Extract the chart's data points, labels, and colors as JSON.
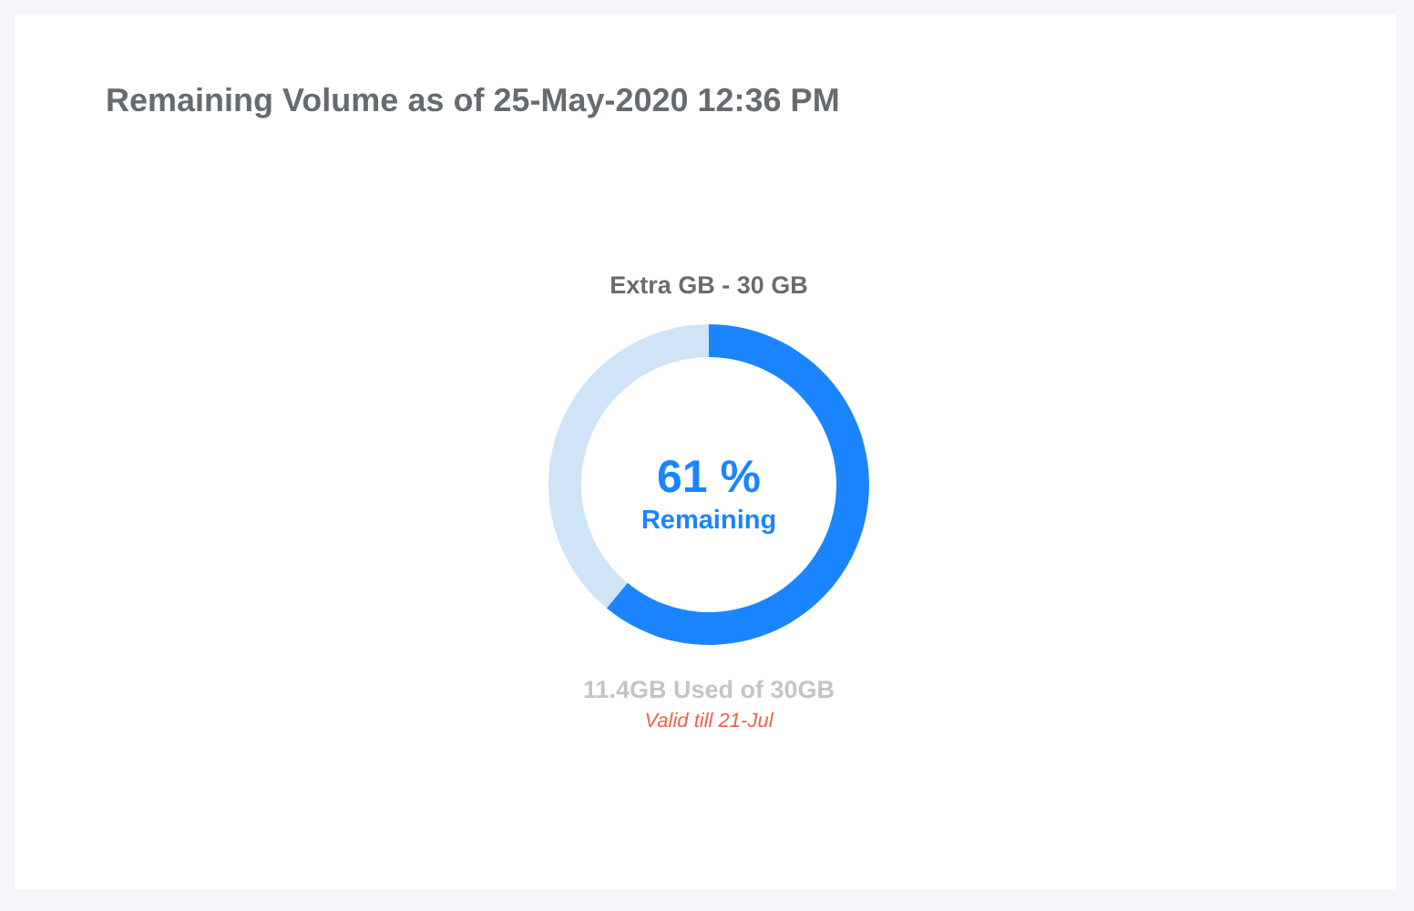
{
  "chart_data": {
    "type": "donut",
    "title": "Remaining Volume as of 25-May-2020 12:36 PM",
    "subtitle": "Extra GB - 30 GB",
    "categories": [
      "Remaining",
      null
    ],
    "values": [
      61,
      39
    ],
    "colors": [
      "#1a85ff",
      "#cfe4f7"
    ],
    "value_labels": [
      "61 %",
      null
    ],
    "annotations": [
      "11.4GB Used of 30GB",
      "Valid till 21-Jul"
    ]
  }
}
